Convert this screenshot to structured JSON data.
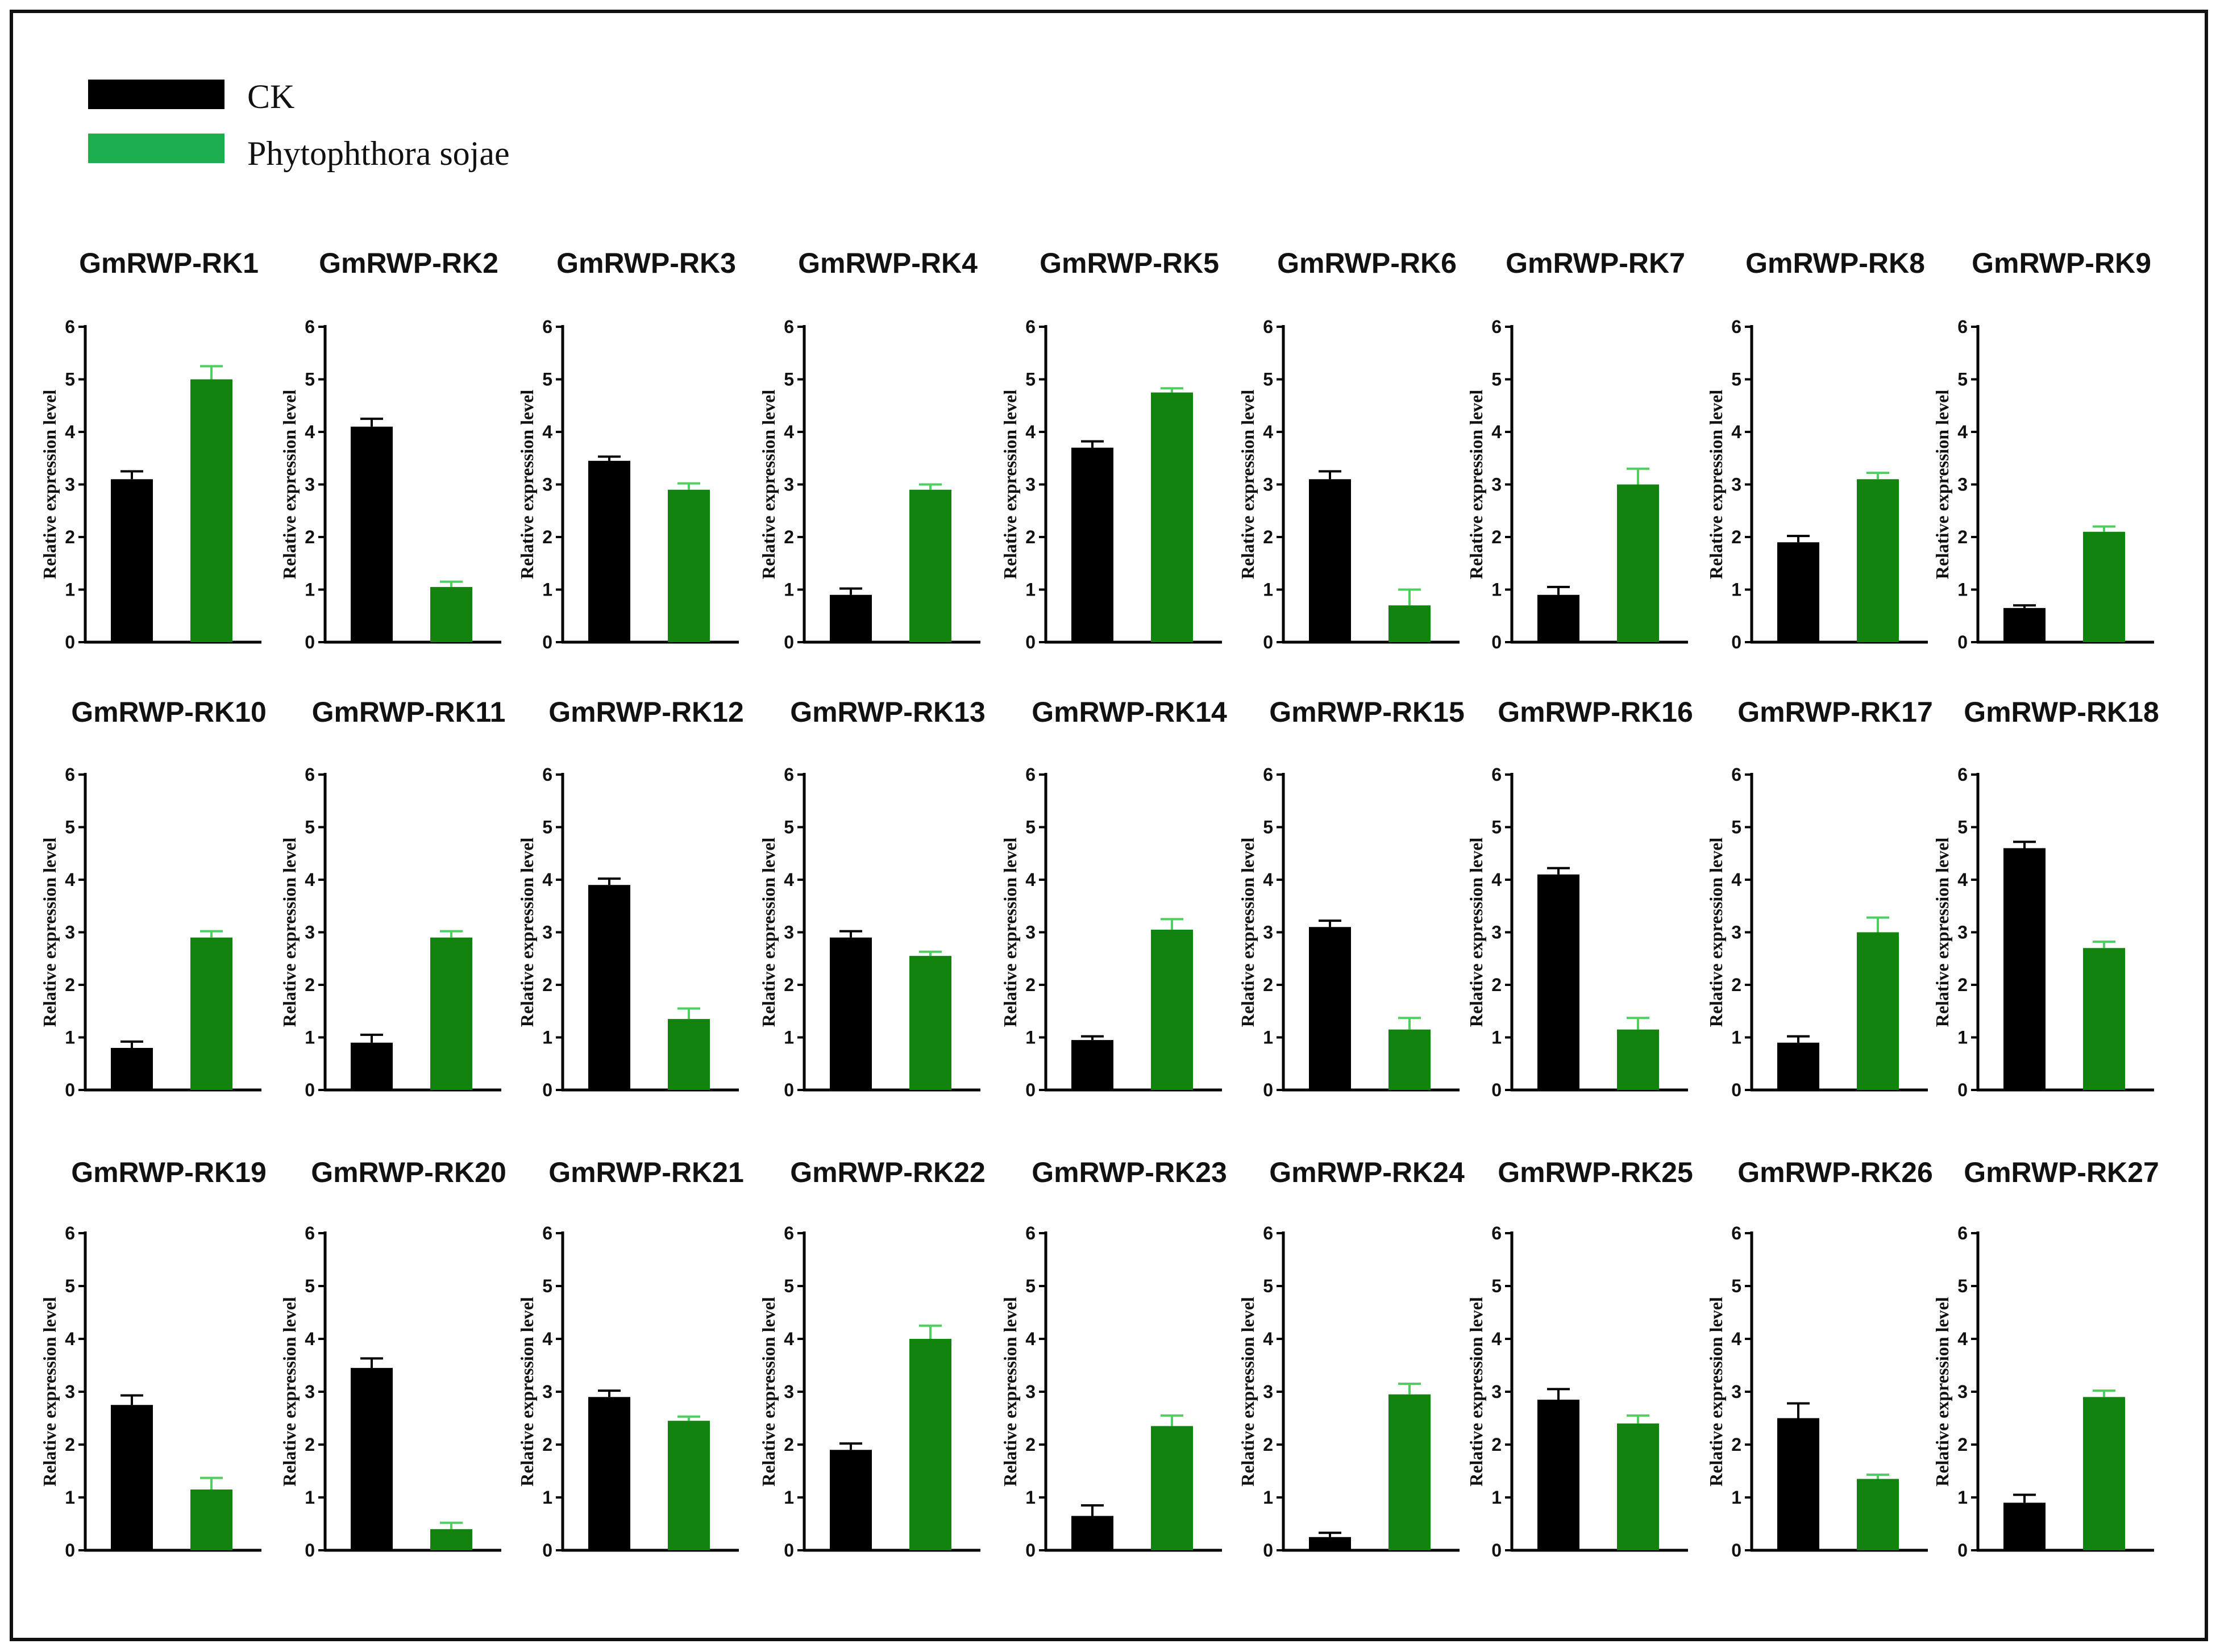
{
  "legend": {
    "items": [
      {
        "label": "CK",
        "color": "#000000"
      },
      {
        "label": "Phytophthora sojae",
        "color": "#1cae4f"
      }
    ]
  },
  "colors": {
    "ck_bar": "#000000",
    "ck_err": "#000000",
    "ps_bar": "#13830f",
    "ps_err": "#4fcf5f"
  },
  "chart_data": {
    "type": "bar",
    "series_names": [
      "CK",
      "Phytophthora sojae"
    ],
    "ylabel": "Relative expression level",
    "ylim": [
      0,
      6
    ],
    "yticks": [
      "0",
      "1",
      "2",
      "3",
      "4",
      "5",
      "6"
    ],
    "panels": [
      {
        "title": "GmRWP-RK1",
        "values": [
          3.1,
          5.0
        ],
        "errors": [
          0.15,
          0.25
        ]
      },
      {
        "title": "GmRWP-RK2",
        "values": [
          4.1,
          1.05
        ],
        "errors": [
          0.15,
          0.1
        ]
      },
      {
        "title": "GmRWP-RK3",
        "values": [
          3.45,
          2.9
        ],
        "errors": [
          0.08,
          0.12
        ]
      },
      {
        "title": "GmRWP-RK4",
        "values": [
          0.9,
          2.9
        ],
        "errors": [
          0.12,
          0.1
        ]
      },
      {
        "title": "GmRWP-RK5",
        "values": [
          3.7,
          4.75
        ],
        "errors": [
          0.12,
          0.08
        ]
      },
      {
        "title": "GmRWP-RK6",
        "values": [
          3.1,
          0.7
        ],
        "errors": [
          0.15,
          0.3
        ]
      },
      {
        "title": "GmRWP-RK7",
        "values": [
          0.9,
          3.0
        ],
        "errors": [
          0.15,
          0.3
        ]
      },
      {
        "title": "GmRWP-RK8",
        "values": [
          1.9,
          3.1
        ],
        "errors": [
          0.12,
          0.12
        ]
      },
      {
        "title": "GmRWP-RK9",
        "values": [
          0.65,
          2.1
        ],
        "errors": [
          0.05,
          0.1
        ]
      },
      {
        "title": "GmRWP-RK10",
        "values": [
          0.8,
          2.9
        ],
        "errors": [
          0.12,
          0.12
        ]
      },
      {
        "title": "GmRWP-RK11",
        "values": [
          0.9,
          2.9
        ],
        "errors": [
          0.15,
          0.12
        ]
      },
      {
        "title": "GmRWP-RK12",
        "values": [
          3.9,
          1.35
        ],
        "errors": [
          0.12,
          0.2
        ]
      },
      {
        "title": "GmRWP-RK13",
        "values": [
          2.9,
          2.55
        ],
        "errors": [
          0.12,
          0.08
        ]
      },
      {
        "title": "GmRWP-RK14",
        "values": [
          0.95,
          3.05
        ],
        "errors": [
          0.07,
          0.2
        ]
      },
      {
        "title": "GmRWP-RK15",
        "values": [
          3.1,
          1.15
        ],
        "errors": [
          0.12,
          0.22
        ]
      },
      {
        "title": "GmRWP-RK16",
        "values": [
          4.1,
          1.15
        ],
        "errors": [
          0.12,
          0.22
        ]
      },
      {
        "title": "GmRWP-RK17",
        "values": [
          0.9,
          3.0
        ],
        "errors": [
          0.12,
          0.28
        ]
      },
      {
        "title": "GmRWP-RK18",
        "values": [
          4.6,
          2.7
        ],
        "errors": [
          0.12,
          0.12
        ]
      },
      {
        "title": "GmRWP-RK19",
        "values": [
          2.75,
          1.15
        ],
        "errors": [
          0.18,
          0.22
        ]
      },
      {
        "title": "GmRWP-RK20",
        "values": [
          3.45,
          0.4
        ],
        "errors": [
          0.18,
          0.12
        ]
      },
      {
        "title": "GmRWP-RK21",
        "values": [
          2.9,
          2.45
        ],
        "errors": [
          0.12,
          0.08
        ]
      },
      {
        "title": "GmRWP-RK22",
        "values": [
          1.9,
          4.0
        ],
        "errors": [
          0.12,
          0.25
        ]
      },
      {
        "title": "GmRWP-RK23",
        "values": [
          0.65,
          2.35
        ],
        "errors": [
          0.2,
          0.2
        ]
      },
      {
        "title": "GmRWP-RK24",
        "values": [
          0.25,
          2.95
        ],
        "errors": [
          0.08,
          0.2
        ]
      },
      {
        "title": "GmRWP-RK25",
        "values": [
          2.85,
          2.4
        ],
        "errors": [
          0.2,
          0.15
        ]
      },
      {
        "title": "GmRWP-RK26",
        "values": [
          2.5,
          1.35
        ],
        "errors": [
          0.28,
          0.08
        ]
      },
      {
        "title": "GmRWP-RK27",
        "values": [
          0.9,
          2.9
        ],
        "errors": [
          0.15,
          0.12
        ]
      }
    ]
  }
}
